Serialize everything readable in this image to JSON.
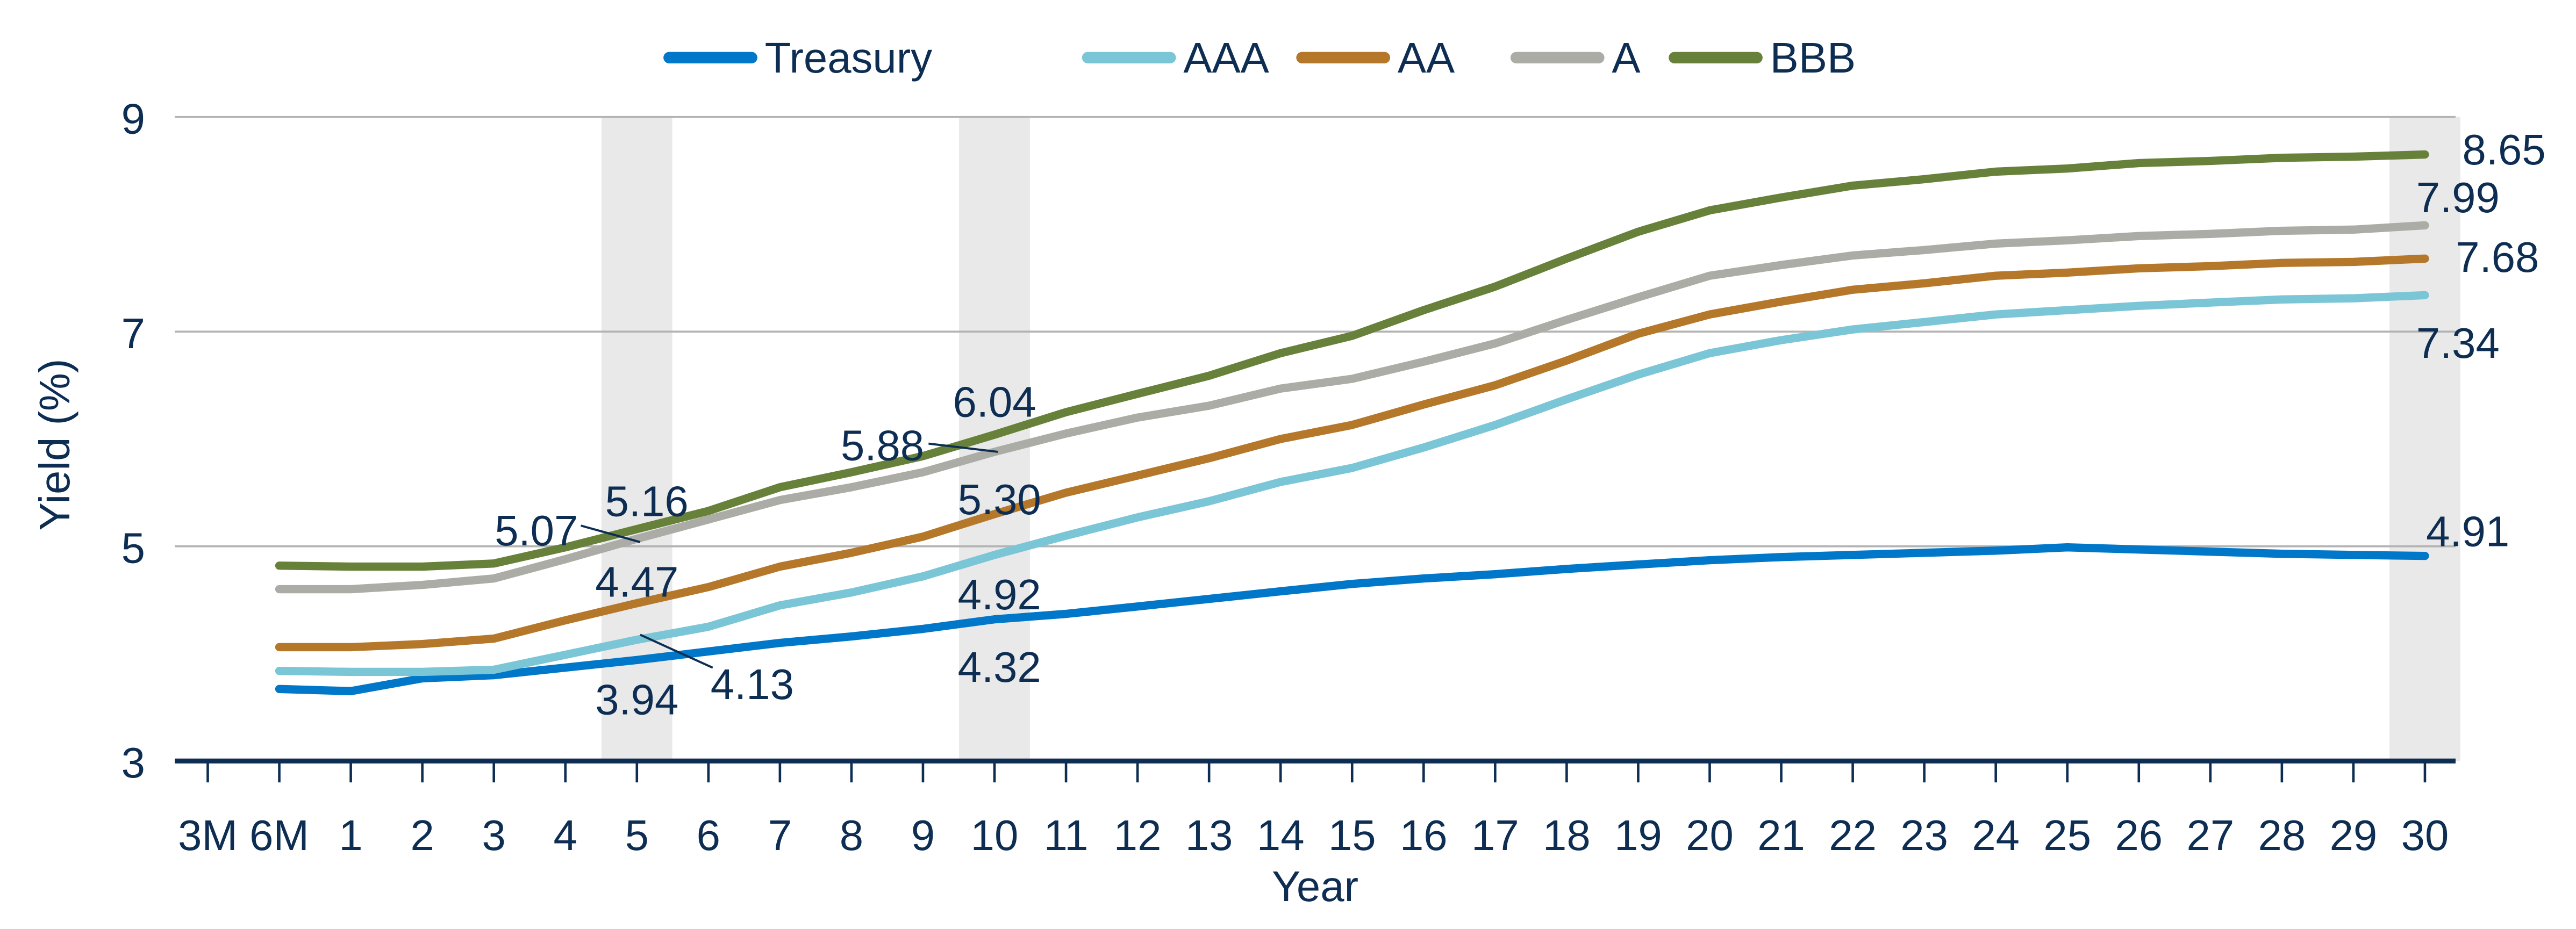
{
  "chart_data": {
    "type": "line",
    "xlabel": "Year",
    "ylabel": "Yield (%)",
    "ylim": [
      3,
      9
    ],
    "yticks": [
      3,
      5,
      7,
      9
    ],
    "grid": true,
    "legend_position": "top",
    "categories": [
      "3M",
      "6M",
      "1",
      "2",
      "3",
      "4",
      "5",
      "6",
      "7",
      "8",
      "9",
      "10",
      "11",
      "12",
      "13",
      "14",
      "15",
      "16",
      "17",
      "18",
      "19",
      "20",
      "21",
      "22",
      "23",
      "24",
      "25",
      "26",
      "27",
      "28",
      "29",
      "30"
    ],
    "highlighted_categories": [
      "5",
      "10",
      "30"
    ],
    "series": [
      {
        "name": "Treasury",
        "color": "#0077c8",
        "values": [
          null,
          3.67,
          3.65,
          3.77,
          3.8,
          3.87,
          3.94,
          4.02,
          4.1,
          4.16,
          4.23,
          4.32,
          4.37,
          4.44,
          4.51,
          4.58,
          4.65,
          4.7,
          4.74,
          4.79,
          4.83,
          4.87,
          4.9,
          4.92,
          4.94,
          4.96,
          4.99,
          4.97,
          4.95,
          4.93,
          4.92,
          4.91
        ]
      },
      {
        "name": "AAA",
        "color": "#7bc6d6",
        "values": [
          null,
          3.84,
          3.83,
          3.83,
          3.85,
          3.99,
          4.13,
          4.25,
          4.45,
          4.57,
          4.72,
          4.92,
          5.1,
          5.27,
          5.42,
          5.6,
          5.73,
          5.92,
          6.13,
          6.37,
          6.6,
          6.8,
          6.92,
          7.02,
          7.09,
          7.16,
          7.2,
          7.24,
          7.27,
          7.3,
          7.31,
          7.34
        ]
      },
      {
        "name": "AA",
        "color": "#b5782a",
        "values": [
          null,
          4.06,
          4.06,
          4.09,
          4.14,
          4.31,
          4.47,
          4.62,
          4.81,
          4.94,
          5.09,
          5.3,
          5.5,
          5.66,
          5.82,
          6.0,
          6.13,
          6.32,
          6.5,
          6.73,
          6.98,
          7.16,
          7.28,
          7.39,
          7.45,
          7.52,
          7.55,
          7.59,
          7.61,
          7.64,
          7.65,
          7.68
        ]
      },
      {
        "name": "A",
        "color": "#abaca6",
        "values": [
          null,
          4.6,
          4.6,
          4.64,
          4.7,
          4.88,
          5.07,
          5.25,
          5.43,
          5.55,
          5.69,
          5.88,
          6.05,
          6.2,
          6.31,
          6.47,
          6.56,
          6.72,
          6.89,
          7.11,
          7.32,
          7.52,
          7.62,
          7.71,
          7.76,
          7.82,
          7.85,
          7.89,
          7.91,
          7.94,
          7.95,
          7.99
        ]
      },
      {
        "name": "BBB",
        "color": "#68813a",
        "values": [
          null,
          4.82,
          4.81,
          4.81,
          4.84,
          4.99,
          5.16,
          5.33,
          5.55,
          5.69,
          5.84,
          6.04,
          6.25,
          6.42,
          6.59,
          6.8,
          6.96,
          7.2,
          7.42,
          7.68,
          7.93,
          8.13,
          8.25,
          8.36,
          8.42,
          8.49,
          8.52,
          8.57,
          8.59,
          8.62,
          8.63,
          8.65
        ]
      }
    ],
    "annotations": [
      {
        "category": "5",
        "series": "Treasury",
        "text": "3.94"
      },
      {
        "category": "5",
        "series": "AAA",
        "text": "4.13"
      },
      {
        "category": "5",
        "series": "AA",
        "text": "4.47"
      },
      {
        "category": "5",
        "series": "A",
        "text": "5.07"
      },
      {
        "category": "5",
        "series": "BBB",
        "text": "5.16"
      },
      {
        "category": "10",
        "series": "Treasury",
        "text": "4.32"
      },
      {
        "category": "10",
        "series": "AAA",
        "text": "4.92"
      },
      {
        "category": "10",
        "series": "AA",
        "text": "5.30"
      },
      {
        "category": "10",
        "series": "A",
        "text": "5.88"
      },
      {
        "category": "10",
        "series": "BBB",
        "text": "6.04"
      },
      {
        "category": "30",
        "series": "Treasury",
        "text": "4.91"
      },
      {
        "category": "30",
        "series": "AAA",
        "text": "7.34"
      },
      {
        "category": "30",
        "series": "AA",
        "text": "7.68"
      },
      {
        "category": "30",
        "series": "A",
        "text": "7.99"
      },
      {
        "category": "30",
        "series": "BBB",
        "text": "8.65"
      }
    ],
    "colors": {
      "text": "#0d2d52",
      "grid": "#b3b3b3",
      "band": "#e9e9e9"
    }
  }
}
